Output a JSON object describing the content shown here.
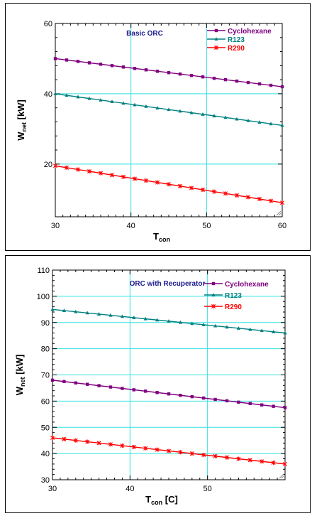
{
  "chart_data": [
    {
      "type": "line",
      "title": "Basic ORC",
      "xlabel": "T",
      "xlabel_sub": "con",
      "ylabel": "W",
      "ylabel_sub": "net",
      "ylabel_unit": "[kW]",
      "xlim": [
        30,
        60
      ],
      "ylim": [
        5,
        60
      ],
      "xticks": [
        30,
        40,
        50,
        60
      ],
      "yticks": [
        20,
        40,
        60
      ],
      "grid": true,
      "legend_position": "top-right",
      "series": [
        {
          "name": "Cyclohexane",
          "color": "#800080",
          "marker": "square",
          "x": [
            30,
            60
          ],
          "y": [
            50,
            42
          ]
        },
        {
          "name": "R123",
          "color": "#008080",
          "marker": "triangle",
          "x": [
            30,
            60
          ],
          "y": [
            40,
            31
          ]
        },
        {
          "name": "R290",
          "color": "#ff0000",
          "marker": "cross",
          "x": [
            30,
            60
          ],
          "y": [
            19.5,
            9
          ]
        }
      ]
    },
    {
      "type": "line",
      "title": "ORC with Recuperator",
      "xlabel": "T",
      "xlabel_sub": "con",
      "xlabel_unit": "[C]",
      "ylabel": "W",
      "ylabel_sub": "net",
      "ylabel_unit": "[kW]",
      "xlim": [
        30,
        60
      ],
      "ylim": [
        30,
        110
      ],
      "xticks": [
        30,
        40,
        50
      ],
      "yticks": [
        30,
        40,
        50,
        60,
        70,
        80,
        90,
        100,
        110
      ],
      "grid": true,
      "legend_position": "top-right",
      "series": [
        {
          "name": "Cyclohexane",
          "color": "#800080",
          "marker": "square",
          "x": [
            30,
            60
          ],
          "y": [
            68,
            57.5
          ]
        },
        {
          "name": "R123",
          "color": "#008080",
          "marker": "triangle",
          "x": [
            30,
            60
          ],
          "y": [
            95,
            86
          ]
        },
        {
          "name": "R290",
          "color": "#ff0000",
          "marker": "cross",
          "x": [
            30,
            60
          ],
          "y": [
            46,
            36
          ]
        }
      ]
    }
  ]
}
